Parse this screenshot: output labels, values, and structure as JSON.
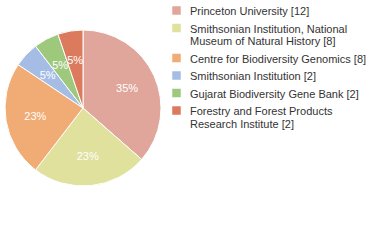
{
  "chart_data": {
    "type": "pie",
    "categories": [
      "Princeton University [12]",
      "Smithsonian Institution, National Museum of Natural History [8]",
      "Centre for Biodiversity Genomics [8]",
      "Smithsonian Institution [2]",
      "Gujarat Biodiversity Gene Bank [2]",
      "Forestry and Forest Products Research Institute [2]"
    ],
    "values": [
      35,
      23,
      23,
      5,
      5,
      5
    ],
    "value_labels": [
      "35%",
      "23%",
      "23%",
      "5%",
      "5%",
      "5%"
    ],
    "colors": [
      "#e0a69b",
      "#dfe19d",
      "#f0ac74",
      "#a5bde5",
      "#9ec97c",
      "#dc7a5e"
    ],
    "data_labels": true,
    "legend": "top-right"
  }
}
